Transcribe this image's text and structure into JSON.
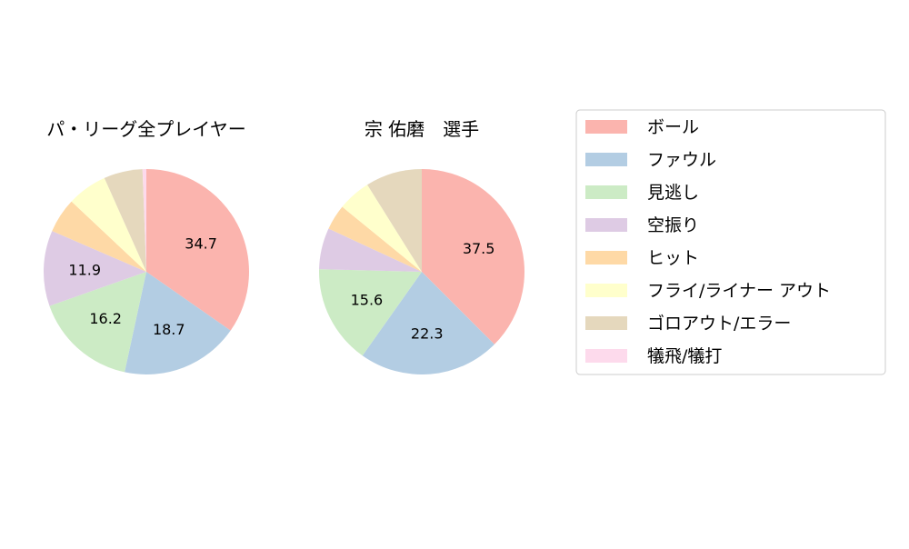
{
  "chart_data": [
    {
      "type": "pie",
      "title": "パ・リーグ全プレイヤー",
      "categories": [
        "ボール",
        "ファウル",
        "見逃し",
        "空振り",
        "ヒット",
        "フライ/ライナー アウト",
        "ゴロアウト/エラー",
        "犠飛/犠打"
      ],
      "values": [
        34.7,
        18.7,
        16.2,
        11.9,
        5.5,
        6.3,
        6.1,
        0.6
      ],
      "labels_shown": [
        "34.7",
        "18.7",
        "16.2",
        "11.9",
        "",
        "",
        "",
        ""
      ],
      "start_angle": 90,
      "direction": "clockwise"
    },
    {
      "type": "pie",
      "title": "宗 佑磨　選手",
      "categories": [
        "ボール",
        "ファウル",
        "見逃し",
        "空振り",
        "ヒット",
        "フライ/ライナー アウト",
        "ゴロアウト/エラー",
        "犠飛/犠打"
      ],
      "values": [
        37.5,
        22.3,
        15.6,
        6.5,
        4.0,
        5.2,
        8.9,
        0.0
      ],
      "labels_shown": [
        "37.5",
        "22.3",
        "15.6",
        "",
        "",
        "",
        "",
        ""
      ],
      "start_angle": 90,
      "direction": "clockwise"
    }
  ],
  "legend": {
    "placement": "right",
    "entries": [
      "ボール",
      "ファウル",
      "見逃し",
      "空振り",
      "ヒット",
      "フライ/ライナー アウト",
      "ゴロアウト/エラー",
      "犠飛/犠打"
    ]
  },
  "colors": [
    "#fbb4ae",
    "#b3cde3",
    "#ccebc5",
    "#decbe4",
    "#fed9a6",
    "#ffffcc",
    "#e5d8bd",
    "#fddaec"
  ]
}
